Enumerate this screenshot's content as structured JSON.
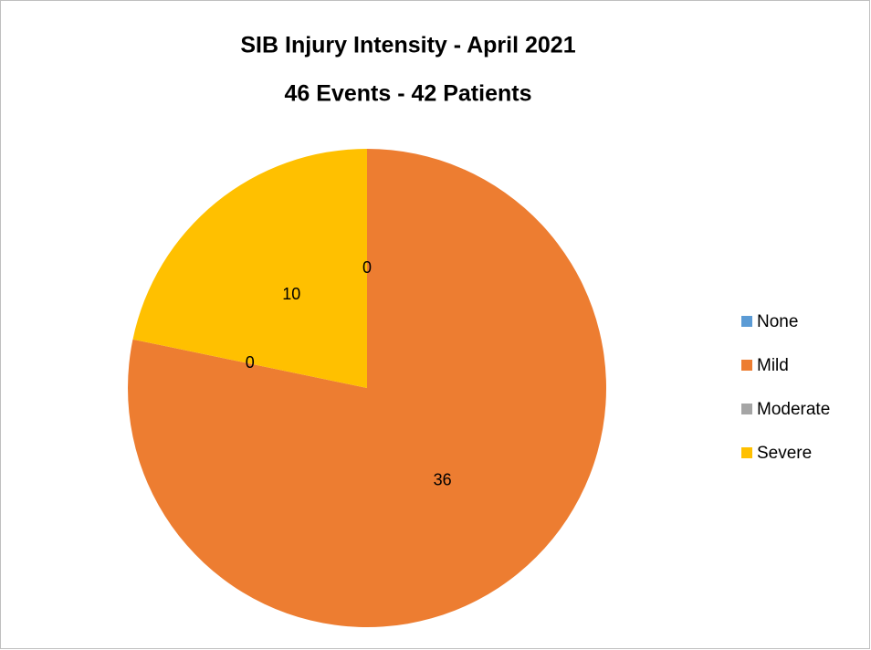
{
  "chart_data": {
    "type": "pie",
    "title": "SIB Injury Intensity - April 2021",
    "subtitle": "46 Events - 42 Patients",
    "categories": [
      "None",
      "Mild",
      "Moderate",
      "Severe"
    ],
    "values": [
      0,
      36,
      0,
      10
    ],
    "colors": [
      "#5b9bd5",
      "#ed7d31",
      "#a5a5a5",
      "#ffc000"
    ],
    "legend": "right"
  }
}
